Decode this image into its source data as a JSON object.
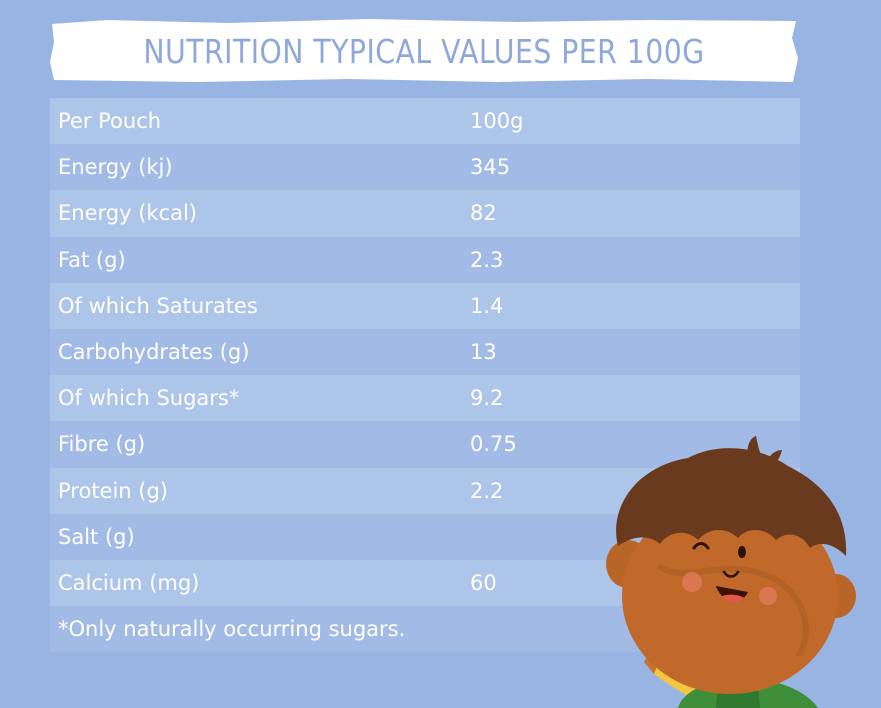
{
  "title": "NUTRITION TYPICAL VALUES PER 100G",
  "rows": [
    {
      "label": "Per Pouch",
      "value": "100g"
    },
    {
      "label": "Energy (kj)",
      "value": "345"
    },
    {
      "label": "Energy (kcal)",
      "value": "82"
    },
    {
      "label": "Fat (g)",
      "value": "2.3"
    },
    {
      "label": "Of which Saturates",
      "value": "1.4"
    },
    {
      "label": "Carbohydrates (g)",
      "value": "13"
    },
    {
      "label": "Of which Sugars*",
      "value": "9.2"
    },
    {
      "label": "Fibre (g)",
      "value": "0.75"
    },
    {
      "label": "Protein (g)",
      "value": "2.2"
    },
    {
      "label": "Salt (g)",
      "value": ""
    },
    {
      "label": "Calcium (mg)",
      "value": "60"
    }
  ],
  "footnote": "*Only naturally occurring sugars.",
  "colors": {
    "background": "#98b4e2",
    "row_light": "#aec5ea",
    "row_dark": "#a1bbe6",
    "title_text": "#8fa8dc",
    "banner": "#ffffff"
  }
}
